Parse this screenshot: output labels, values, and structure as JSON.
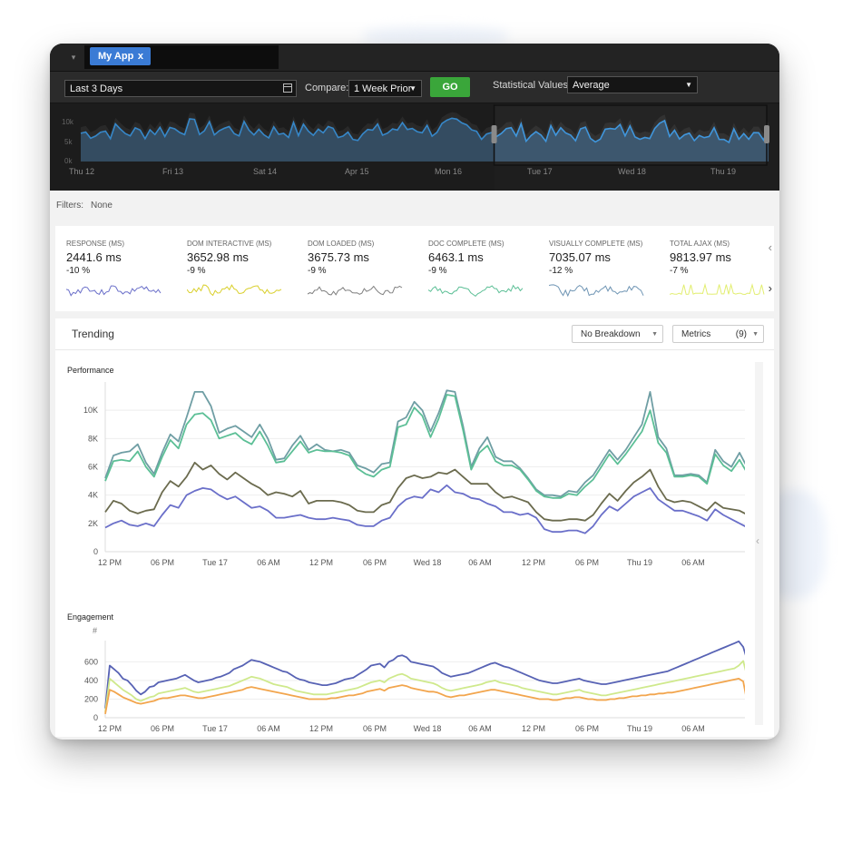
{
  "tabs": [
    {
      "label": "My App",
      "close": "x"
    }
  ],
  "toolbar": {
    "date_range": "Last 3 Days",
    "compare_label": "Compare:",
    "compare_value": "1 Week Prior",
    "go_label": "GO",
    "stat_label": "Statistical Values:",
    "stat_value": "Average"
  },
  "overview": {
    "y_ticks": [
      "10k",
      "5k",
      "0k"
    ],
    "x_ticks": [
      "Thu 12",
      "Fri 13",
      "Sat 14",
      "Apr 15",
      "Mon 16",
      "Tue 17",
      "Wed 18",
      "Thu 19"
    ],
    "selection": [
      0.64,
      1.0
    ]
  },
  "filters": {
    "label": "Filters:",
    "value": "None"
  },
  "metrics": [
    {
      "title": "RESPONSE (MS)",
      "value": "2441.6 ms",
      "change": "-10 %",
      "color": "#6a6fc9"
    },
    {
      "title": "DOM INTERACTIVE (MS)",
      "value": "3652.98 ms",
      "change": "-9 %",
      "color": "#d9cf2a"
    },
    {
      "title": "DOM LOADED (MS)",
      "value": "3675.73 ms",
      "change": "-9 %",
      "color": "#7f7f7f"
    },
    {
      "title": "DOC COMPLETE (MS)",
      "value": "6463.1 ms",
      "change": "-9 %",
      "color": "#5cbf96"
    },
    {
      "title": "VISUALLY COMPLETE (MS)",
      "value": "7035.07 ms",
      "change": "-12 %",
      "color": "#6f95b4"
    },
    {
      "title": "TOTAL AJAX (MS)",
      "value": "9813.97 ms",
      "change": "-7 %",
      "color": "#e2ee70"
    }
  ],
  "trending": {
    "title": "Trending",
    "breakdown": "No Breakdown",
    "metrics_label": "Metrics",
    "metrics_count": "(9)"
  },
  "chart_data": [
    {
      "type": "line",
      "title": "Performance",
      "ylim": [
        0,
        12000
      ],
      "y_ticks": [
        "0",
        "2K",
        "4K",
        "6K",
        "8K",
        "10K"
      ],
      "x_ticks": [
        "12 PM",
        "06 PM",
        "Tue 17",
        "06 AM",
        "12 PM",
        "06 PM",
        "Wed 18",
        "06 AM",
        "12 PM",
        "06 PM",
        "Thu 19",
        "06 AM"
      ],
      "series": [
        {
          "color": "#6f9ea4",
          "values": [
            5200,
            6800,
            7000,
            7100,
            7600,
            6300,
            5500,
            7000,
            8300,
            7800,
            9500,
            11300,
            11300,
            10300,
            8400,
            8700,
            8900,
            8500,
            8100,
            9000,
            8000,
            6500,
            6600,
            7500,
            8200,
            7200,
            7600,
            7200,
            7100,
            7200,
            7000,
            6100,
            5900,
            5600,
            6200,
            6300,
            9200,
            9500,
            10600,
            10000,
            8500,
            9800,
            11400,
            11300,
            8900,
            6000,
            7300,
            8100,
            6700,
            6400,
            6400,
            5900,
            5200,
            4400,
            4000,
            4000,
            3900,
            4300,
            4200,
            4900,
            5400,
            6300,
            7200,
            6500,
            7200,
            8100,
            9000,
            11300,
            8100,
            7300,
            5400,
            5400,
            5500,
            5400,
            4900,
            7200,
            6400,
            6000,
            7000,
            5900
          ]
        },
        {
          "color": "#5cbf96",
          "values": [
            5000,
            6400,
            6500,
            6400,
            7100,
            6000,
            5300,
            6700,
            7900,
            7300,
            9000,
            9700,
            9800,
            9300,
            8000,
            8200,
            8400,
            7900,
            7600,
            8500,
            7500,
            6300,
            6400,
            7100,
            7800,
            7000,
            7200,
            7100,
            7100,
            7000,
            6800,
            5900,
            5500,
            5300,
            5800,
            6000,
            8800,
            9000,
            10200,
            9600,
            8100,
            9400,
            11100,
            11000,
            8600,
            5800,
            7000,
            7500,
            6400,
            6100,
            6100,
            5800,
            5100,
            4300,
            3900,
            3800,
            3800,
            4100,
            4000,
            4600,
            5100,
            6000,
            6900,
            6200,
            6900,
            7700,
            8500,
            10000,
            7700,
            7000,
            5300,
            5300,
            5400,
            5300,
            4800,
            6900,
            6100,
            5700,
            6500,
            5500
          ]
        },
        {
          "color": "#6b6b4e",
          "values": [
            2800,
            3600,
            3400,
            2900,
            2700,
            2900,
            3000,
            4200,
            5000,
            4600,
            5300,
            6300,
            5800,
            6100,
            5500,
            5100,
            5600,
            5200,
            4800,
            4500,
            4000,
            4200,
            4100,
            3900,
            4300,
            3400,
            3600,
            3600,
            3600,
            3500,
            3300,
            2900,
            2800,
            2800,
            3300,
            3500,
            4500,
            5200,
            5400,
            5200,
            5300,
            5600,
            5500,
            5800,
            5300,
            4800,
            4800,
            4800,
            4200,
            3800,
            3900,
            3700,
            3500,
            2800,
            2300,
            2200,
            2200,
            2300,
            2300,
            2200,
            2600,
            3400,
            4100,
            3600,
            4300,
            4900,
            5300,
            5800,
            4600,
            3700,
            3500,
            3600,
            3500,
            3200,
            2900,
            3500,
            3100,
            3000,
            2900,
            2600
          ]
        },
        {
          "color": "#6a6fc9",
          "values": [
            1700,
            2000,
            2200,
            1900,
            1800,
            2000,
            1800,
            2600,
            3300,
            3100,
            4000,
            4300,
            4500,
            4400,
            4000,
            3700,
            3900,
            3500,
            3100,
            3200,
            2900,
            2400,
            2400,
            2500,
            2600,
            2400,
            2300,
            2300,
            2400,
            2300,
            2200,
            1900,
            1800,
            1800,
            2200,
            2400,
            3200,
            3700,
            3900,
            3800,
            4400,
            4200,
            4700,
            4200,
            4100,
            3800,
            3700,
            3400,
            3200,
            2800,
            2800,
            2600,
            2700,
            2400,
            1600,
            1400,
            1400,
            1500,
            1500,
            1300,
            1800,
            2600,
            3200,
            2900,
            3400,
            3900,
            4200,
            4500,
            3700,
            3300,
            2900,
            2900,
            2700,
            2500,
            2200,
            3000,
            2600,
            2300,
            2000,
            1700
          ]
        }
      ]
    },
    {
      "type": "line",
      "title": "Engagement",
      "ylabel": "#",
      "ylim": [
        0,
        750
      ],
      "y_ticks": [
        "0",
        "200",
        "400",
        "600"
      ],
      "x_ticks": [
        "12 PM",
        "06 PM",
        "Tue 17",
        "06 AM",
        "12 PM",
        "06 PM",
        "Wed 18",
        "06 AM",
        "12 PM",
        "06 PM",
        "Thu 19",
        "06 AM"
      ],
      "series": [
        {
          "color": "#5762b4",
          "values": [
            100,
            560,
            520,
            480,
            420,
            400,
            350,
            290,
            250,
            280,
            330,
            340,
            380,
            390,
            400,
            410,
            420,
            440,
            460,
            430,
            400,
            380,
            390,
            400,
            410,
            430,
            440,
            460,
            480,
            520,
            540,
            560,
            590,
            620,
            610,
            600,
            580,
            560,
            540,
            520,
            500,
            490,
            460,
            430,
            410,
            400,
            380,
            370,
            360,
            350,
            350,
            360,
            370,
            390,
            410,
            420,
            430,
            460,
            490,
            520,
            560,
            570,
            580,
            540,
            600,
            620,
            660,
            670,
            650,
            600,
            590,
            580,
            570,
            560,
            550,
            520,
            480,
            460,
            440,
            450,
            460,
            470,
            480,
            500,
            520,
            540,
            560,
            580,
            590,
            570,
            550,
            540,
            520,
            500,
            480,
            460,
            440,
            420,
            400,
            390,
            380,
            370,
            370,
            380,
            390,
            400,
            410,
            420,
            400,
            390,
            380,
            370,
            360,
            360,
            370,
            380,
            390,
            400,
            410,
            420,
            430,
            440,
            450,
            460,
            470,
            480,
            490,
            500,
            520,
            540,
            560,
            580,
            600,
            620,
            640,
            660,
            680,
            700,
            720,
            740,
            760,
            780,
            800,
            820,
            760,
            600
          ]
        },
        {
          "color": "#cfe98c",
          "values": [
            60,
            420,
            380,
            340,
            300,
            270,
            240,
            200,
            180,
            200,
            220,
            230,
            260,
            270,
            280,
            290,
            300,
            310,
            320,
            300,
            280,
            270,
            280,
            290,
            300,
            310,
            320,
            330,
            340,
            360,
            380,
            400,
            420,
            440,
            430,
            420,
            400,
            380,
            360,
            350,
            340,
            330,
            310,
            290,
            280,
            270,
            260,
            250,
            250,
            250,
            250,
            260,
            270,
            280,
            290,
            300,
            310,
            320,
            340,
            360,
            380,
            390,
            400,
            380,
            420,
            440,
            460,
            470,
            450,
            420,
            410,
            400,
            390,
            380,
            370,
            350,
            320,
            300,
            290,
            300,
            310,
            320,
            330,
            340,
            350,
            360,
            380,
            390,
            400,
            380,
            370,
            360,
            350,
            340,
            320,
            310,
            300,
            290,
            280,
            270,
            260,
            250,
            250,
            260,
            270,
            280,
            290,
            300,
            280,
            270,
            260,
            250,
            240,
            240,
            250,
            260,
            270,
            280,
            290,
            300,
            310,
            320,
            330,
            340,
            350,
            360,
            370,
            380,
            390,
            400,
            410,
            420,
            430,
            440,
            450,
            460,
            470,
            480,
            490,
            500,
            510,
            520,
            530,
            560,
            610,
            420
          ]
        },
        {
          "color": "#f2a54d",
          "values": [
            40,
            300,
            280,
            250,
            220,
            200,
            180,
            160,
            150,
            160,
            170,
            180,
            200,
            210,
            210,
            220,
            230,
            240,
            240,
            230,
            220,
            210,
            210,
            220,
            230,
            240,
            250,
            260,
            270,
            280,
            290,
            300,
            320,
            330,
            320,
            310,
            300,
            290,
            280,
            270,
            260,
            250,
            240,
            230,
            220,
            210,
            200,
            200,
            200,
            200,
            200,
            210,
            210,
            220,
            230,
            240,
            240,
            250,
            260,
            280,
            290,
            300,
            310,
            290,
            320,
            330,
            340,
            350,
            340,
            320,
            310,
            300,
            290,
            280,
            280,
            270,
            250,
            230,
            220,
            230,
            240,
            240,
            250,
            260,
            270,
            280,
            290,
            300,
            300,
            290,
            280,
            270,
            260,
            250,
            240,
            230,
            220,
            210,
            200,
            200,
            200,
            190,
            190,
            200,
            210,
            210,
            220,
            220,
            210,
            200,
            200,
            190,
            190,
            190,
            200,
            200,
            210,
            210,
            220,
            230,
            230,
            240,
            240,
            250,
            250,
            260,
            260,
            270,
            270,
            280,
            290,
            300,
            310,
            320,
            330,
            340,
            350,
            360,
            370,
            380,
            390,
            400,
            410,
            420,
            390,
            140
          ]
        }
      ]
    }
  ]
}
